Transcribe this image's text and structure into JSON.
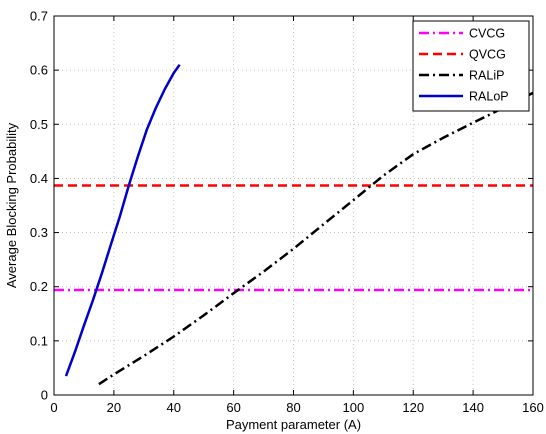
{
  "chart_data": {
    "type": "line",
    "xlabel": "Payment parameter (A)",
    "ylabel": "Average Blocking Probability",
    "xlim": [
      0,
      160
    ],
    "ylim": [
      0,
      0.7
    ],
    "xticks": [
      0,
      20,
      40,
      60,
      80,
      100,
      120,
      140,
      160
    ],
    "yticks": [
      0,
      0.1,
      0.2,
      0.3,
      0.4,
      0.5,
      0.6,
      0.7
    ],
    "xtick_labels": [
      "0",
      "20",
      "40",
      "60",
      "80",
      "100",
      "120",
      "140",
      "160"
    ],
    "ytick_labels": [
      "0",
      "0.1",
      "0.2",
      "0.3",
      "0.4",
      "0.5",
      "0.6",
      "0.7"
    ],
    "grid": true,
    "legend_position": "top-right",
    "series": [
      {
        "name": "CVCG",
        "color": "#ff00ff",
        "style": "dashdot",
        "x": [
          0,
          160
        ],
        "y": [
          0.194,
          0.194
        ]
      },
      {
        "name": "QVCG",
        "color": "#ff0000",
        "style": "dashed",
        "x": [
          0,
          160
        ],
        "y": [
          0.387,
          0.387
        ]
      },
      {
        "name": "RALiP",
        "color": "#000000",
        "style": "dashdot",
        "x": [
          15,
          20,
          30,
          40,
          50,
          60,
          70,
          80,
          90,
          100,
          110,
          120,
          130,
          140,
          150,
          160
        ],
        "y": [
          0.02,
          0.038,
          0.072,
          0.108,
          0.147,
          0.188,
          0.228,
          0.27,
          0.315,
          0.36,
          0.405,
          0.445,
          0.475,
          0.503,
          0.53,
          0.558
        ]
      },
      {
        "name": "RALoP",
        "color": "#0000cc",
        "style": "solid",
        "x": [
          4,
          7,
          10,
          13,
          16,
          19,
          22,
          25,
          28,
          31,
          34,
          37,
          40,
          42
        ],
        "y": [
          0.035,
          0.08,
          0.128,
          0.175,
          0.225,
          0.278,
          0.33,
          0.387,
          0.44,
          0.49,
          0.53,
          0.565,
          0.595,
          0.61
        ]
      }
    ]
  }
}
